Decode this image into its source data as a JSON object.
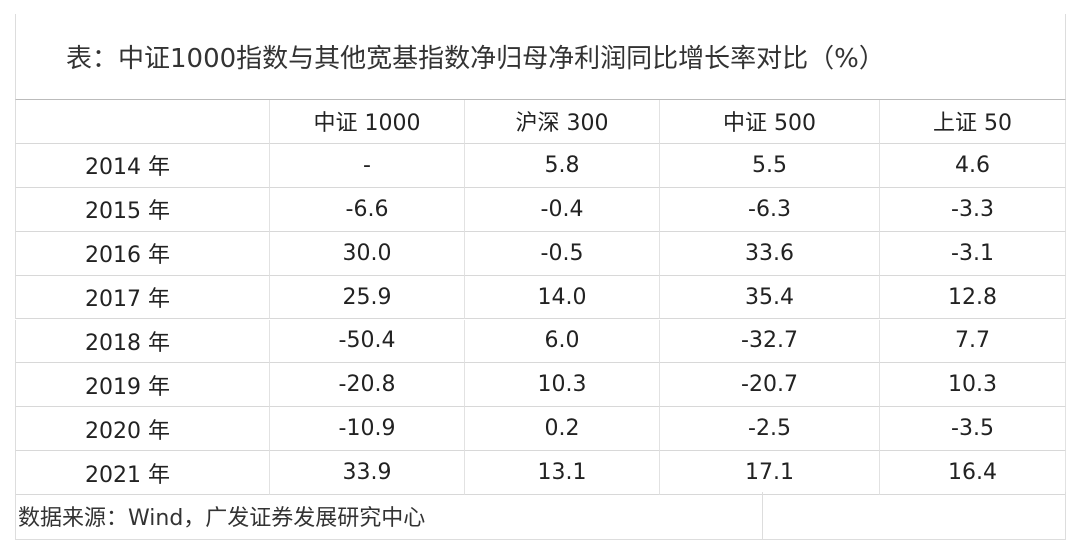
{
  "title": "表：中证1000指数与其他宽基指数净归母净利润同比增长率对比（%）",
  "table": {
    "header": [
      "",
      "中证 1000",
      "沪深 300",
      "中证 500",
      "上证 50"
    ],
    "rows": [
      [
        "2014 年",
        "-",
        "5.8",
        "5.5",
        "4.6"
      ],
      [
        "2015 年",
        "-6.6",
        "-0.4",
        "-6.3",
        "-3.3"
      ],
      [
        "2016 年",
        "30.0",
        "-0.5",
        "33.6",
        "-3.1"
      ],
      [
        "2017 年",
        "25.9",
        "14.0",
        "35.4",
        "12.8"
      ],
      [
        "2018 年",
        "-50.4",
        "6.0",
        "-32.7",
        "7.7"
      ],
      [
        "2019 年",
        "-20.8",
        "10.3",
        "-20.7",
        "10.3"
      ],
      [
        "2020 年",
        "-10.9",
        "0.2",
        "-2.5",
        "-3.5"
      ],
      [
        "2021 年",
        "33.9",
        "13.1",
        "17.1",
        "16.4"
      ]
    ]
  },
  "source": "数据来源：Wind，广发证券发展研究中心"
}
